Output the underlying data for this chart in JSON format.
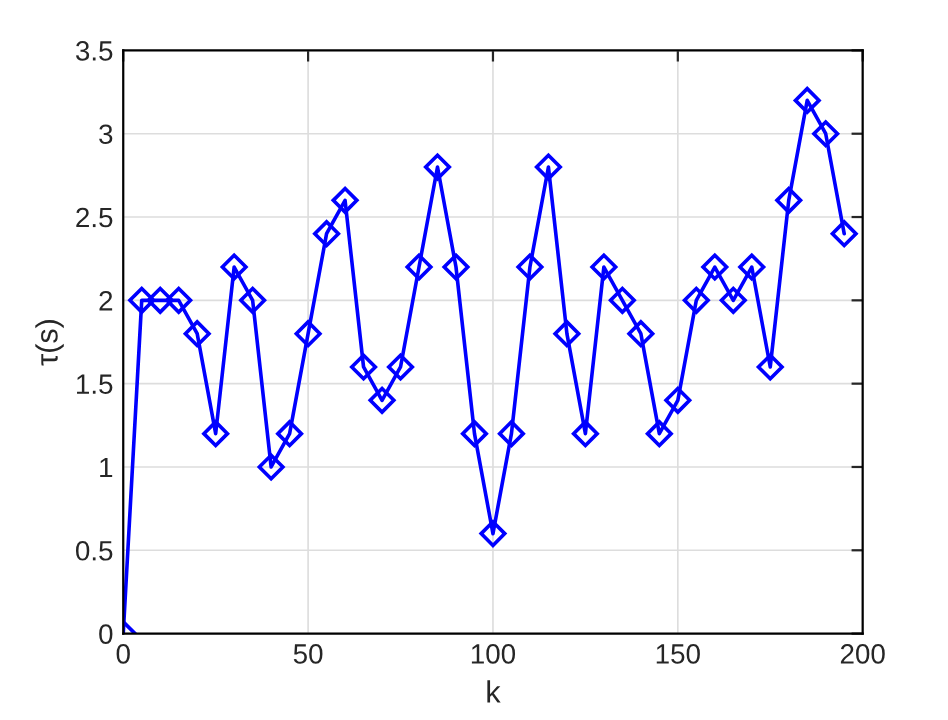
{
  "chart_data": {
    "type": "line",
    "xlabel": "k",
    "ylabel": "τ(s)",
    "x": [
      0,
      5,
      10,
      15,
      20,
      25,
      30,
      35,
      40,
      45,
      50,
      55,
      60,
      65,
      70,
      75,
      80,
      85,
      90,
      95,
      100,
      105,
      110,
      115,
      120,
      125,
      130,
      135,
      140,
      145,
      150,
      155,
      160,
      165,
      170,
      175,
      180,
      185,
      190,
      195
    ],
    "series": [
      {
        "color": "#0000ff",
        "values": [
          0,
          2,
          2,
          2,
          1.8,
          1.2,
          2.2,
          2.0,
          1.0,
          1.2,
          1.8,
          2.4,
          2.6,
          1.6,
          1.4,
          1.6,
          2.2,
          2.8,
          2.2,
          1.2,
          0.6,
          1.2,
          2.2,
          2.8,
          1.8,
          1.2,
          2.2,
          2.0,
          1.8,
          1.2,
          1.4,
          2.0,
          2.2,
          2.0,
          2.2,
          1.6,
          2.6,
          3.2,
          3.0,
          2.4
        ]
      }
    ],
    "xlim": [
      0,
      200
    ],
    "xticks": [
      0,
      50,
      100,
      150,
      200
    ],
    "ylim": [
      0,
      3.5
    ],
    "yticks": [
      0,
      0.5,
      1,
      1.5,
      2,
      2.5,
      3,
      3.5
    ],
    "grid": true,
    "marker": "diamond",
    "line_style": "solid"
  }
}
